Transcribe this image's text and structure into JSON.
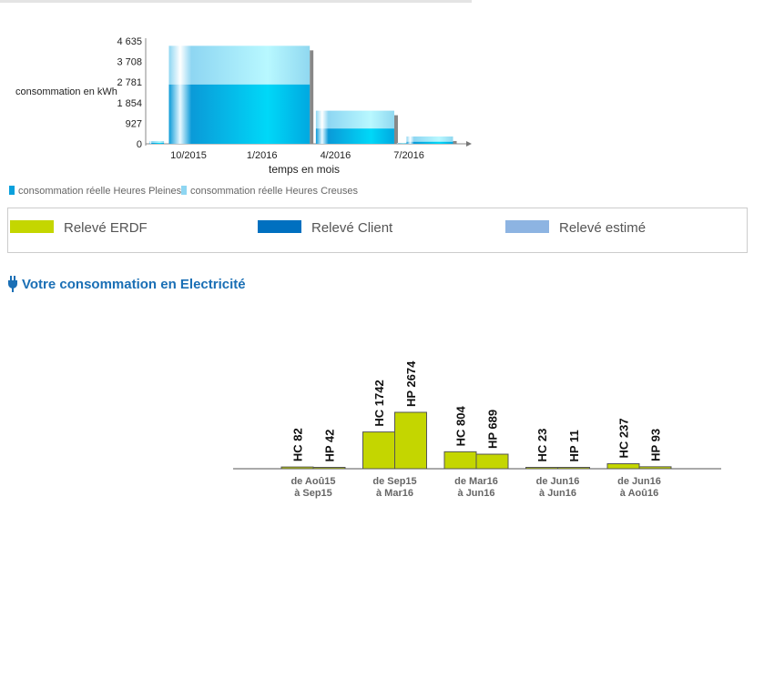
{
  "chart_data": [
    {
      "type": "bar",
      "stacked": true,
      "ylabel": "consommation en kWh",
      "xlabel": "temps en mois",
      "yticks": [
        "0",
        "927",
        "1 854",
        "2 781",
        "3 708",
        "4 635"
      ],
      "ylim": [
        0,
        4635
      ],
      "xticks": [
        {
          "label": "10/2015",
          "month": 9
        },
        {
          "label": "1/2016",
          "month": 12
        },
        {
          "label": "4/2016",
          "month": 15
        },
        {
          "label": "7/2016",
          "month": 18
        }
      ],
      "series": [
        {
          "name": "consommation réelle Heures Pleines",
          "color": "#0aa0dc"
        },
        {
          "name": "consommation réelle Heures Creuses",
          "color": "#8ed6f2"
        }
      ],
      "bars": [
        {
          "start": 7.4,
          "end": 8.0,
          "hp": 42,
          "hc": 82
        },
        {
          "start": 8.2,
          "end": 13.95,
          "hp": 2674,
          "hc": 1742
        },
        {
          "start": 14.2,
          "end": 17.4,
          "hp": 689,
          "hc": 804
        },
        {
          "start": 17.5,
          "end": 17.9,
          "hp": 11,
          "hc": 23
        },
        {
          "start": 17.9,
          "end": 19.8,
          "hp": 93,
          "hc": 237
        }
      ]
    },
    {
      "type": "bar",
      "categories": [
        [
          "de Aoû15",
          "à Sep15"
        ],
        [
          "de Sep15",
          "à Mar16"
        ],
        [
          "de Mar16",
          "à Jun16"
        ],
        [
          "de Jun16",
          "à Jun16"
        ],
        [
          "de Jun16",
          "à Aoû16"
        ]
      ],
      "series": [
        {
          "name": "HC",
          "values": [
            82,
            1742,
            804,
            23,
            237
          ]
        },
        {
          "name": "HP",
          "values": [
            42,
            2674,
            689,
            11,
            93
          ]
        }
      ],
      "color": "#c4d600"
    }
  ],
  "legend_box": {
    "items": [
      {
        "label": "Relevé ERDF",
        "color": "#c4d600"
      },
      {
        "label": "Relevé Client",
        "color": "#0070c0"
      },
      {
        "label": "Relevé estimé",
        "color": "#8db4e2"
      }
    ]
  },
  "section_title": "Votre consommation en Electricité"
}
